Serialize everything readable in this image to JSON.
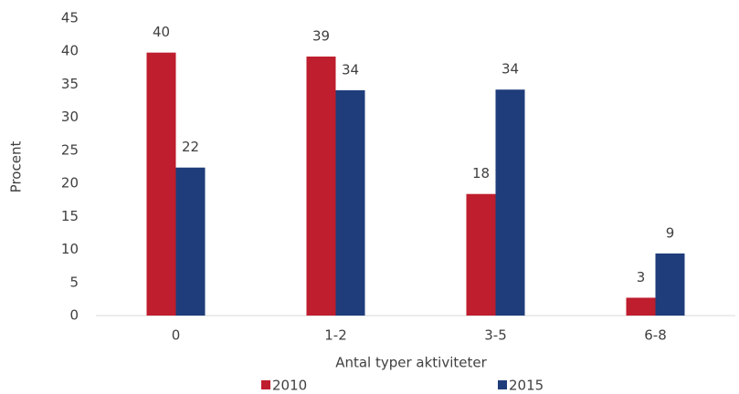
{
  "chart_data": {
    "type": "bar",
    "categories": [
      "0",
      "1-2",
      "3-5",
      "6-8"
    ],
    "series": [
      {
        "name": "2010",
        "color": "#be1e2d",
        "values": [
          39.8,
          39.2,
          18.4,
          2.7
        ],
        "value_labels": [
          "40",
          "39",
          "18",
          "3"
        ]
      },
      {
        "name": "2015",
        "color": "#1f3d7a",
        "values": [
          22.4,
          34.1,
          34.2,
          9.4
        ],
        "value_labels": [
          "22",
          "34",
          "34",
          "9"
        ]
      }
    ],
    "xlabel": "Antal typer aktiviteter",
    "ylabel": "Procent",
    "ylim": [
      0,
      45
    ],
    "yticks": [
      0,
      5,
      10,
      15,
      20,
      25,
      30,
      35,
      40,
      45
    ],
    "grid": false,
    "legend": "bottom"
  }
}
